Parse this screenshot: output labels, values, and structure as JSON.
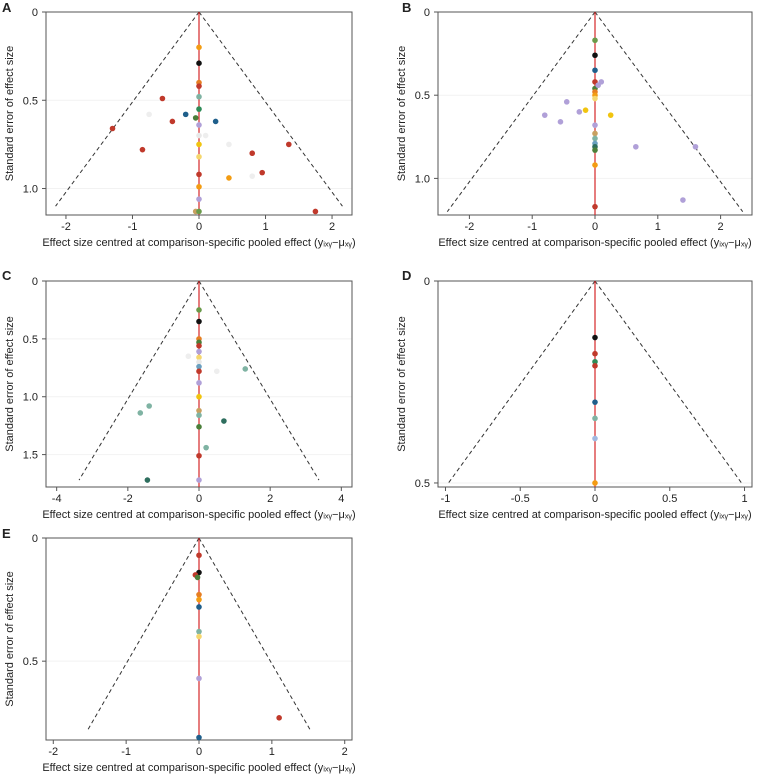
{
  "chart_data": [
    {
      "type": "scatter",
      "panel": "A",
      "xlabel": "Effect size centred at comparison-specific pooled effect (yᵢₓᵧ−μₓᵧ)",
      "ylabel": "Standard error of effect size",
      "xlim": [
        -2.3,
        2.3
      ],
      "ylim": [
        0,
        1.15
      ],
      "xticks": [
        -2,
        -1,
        0,
        1,
        2
      ],
      "xtick_labels": [
        "-2",
        "-1",
        "0",
        "1",
        "2"
      ],
      "yticks": [
        0,
        0.5,
        1.0
      ],
      "ytick_labels": [
        "0",
        "0.5",
        "1.0"
      ],
      "funnel_se_max": 1.1,
      "points": [
        {
          "x": 0.0,
          "y": 0.2,
          "c": "#f39c12"
        },
        {
          "x": 0.0,
          "y": 0.29,
          "c": "#111111"
        },
        {
          "x": 0.0,
          "y": 0.4,
          "c": "#e67e22"
        },
        {
          "x": 0.0,
          "y": 0.42,
          "c": "#c0392b"
        },
        {
          "x": 0.0,
          "y": 0.48,
          "c": "#7fb3a3"
        },
        {
          "x": 0.0,
          "y": 0.55,
          "c": "#2e8b57"
        },
        {
          "x": -0.05,
          "y": 0.6,
          "c": "#4a7f3a"
        },
        {
          "x": 0.0,
          "y": 0.64,
          "c": "#b0a0d8"
        },
        {
          "x": 0.0,
          "y": 0.7,
          "c": "#e8e8e8"
        },
        {
          "x": 0.0,
          "y": 0.75,
          "c": "#f1c40f"
        },
        {
          "x": 0.0,
          "y": 0.82,
          "c": "#f5d76e"
        },
        {
          "x": 0.0,
          "y": 0.92,
          "c": "#c0392b"
        },
        {
          "x": 0.0,
          "y": 0.99,
          "c": "#f39c12"
        },
        {
          "x": 0.0,
          "y": 1.06,
          "c": "#b0a0d8"
        },
        {
          "x": -0.05,
          "y": 1.13,
          "c": "#c8a060"
        },
        {
          "x": 0.0,
          "y": 1.13,
          "c": "#6a9a4a"
        },
        {
          "x": -0.2,
          "y": 0.58,
          "c": "#1f5f8b"
        },
        {
          "x": -0.4,
          "y": 0.62,
          "c": "#c0392b"
        },
        {
          "x": -0.55,
          "y": 0.49,
          "c": "#c0392b"
        },
        {
          "x": -0.75,
          "y": 0.58,
          "c": "#eeeeee"
        },
        {
          "x": -0.85,
          "y": 0.78,
          "c": "#c0392b"
        },
        {
          "x": -1.3,
          "y": 0.66,
          "c": "#c0392b"
        },
        {
          "x": 0.25,
          "y": 0.62,
          "c": "#1f5f8b"
        },
        {
          "x": 0.1,
          "y": 0.7,
          "c": "#eeeeee"
        },
        {
          "x": 0.45,
          "y": 0.75,
          "c": "#eeeeee"
        },
        {
          "x": 0.45,
          "y": 0.94,
          "c": "#f39c12"
        },
        {
          "x": 0.8,
          "y": 0.93,
          "c": "#eeeeee"
        },
        {
          "x": 0.8,
          "y": 0.8,
          "c": "#c0392b"
        },
        {
          "x": 0.95,
          "y": 0.91,
          "c": "#c0392b"
        },
        {
          "x": 1.35,
          "y": 0.75,
          "c": "#c0392b"
        },
        {
          "x": 1.75,
          "y": 1.13,
          "c": "#c0392b"
        }
      ]
    },
    {
      "type": "scatter",
      "panel": "B",
      "xlabel": "Effect size centred at comparison-specific pooled effect (yᵢₓᵧ−μₓᵧ)",
      "ylabel": "Standard error of effect size",
      "xlim": [
        -2.5,
        2.5
      ],
      "ylim": [
        0,
        1.22
      ],
      "xticks": [
        -2,
        -1,
        0,
        1,
        2
      ],
      "xtick_labels": [
        "-2",
        "-1",
        "0",
        "1",
        "2"
      ],
      "yticks": [
        0,
        0.5,
        1.0
      ],
      "ytick_labels": [
        "0",
        "0.5",
        "1.0"
      ],
      "funnel_se_max": 1.2,
      "points": [
        {
          "x": 0.0,
          "y": 0.17,
          "c": "#6a9a4a"
        },
        {
          "x": 0.0,
          "y": 0.26,
          "c": "#111111"
        },
        {
          "x": 0.0,
          "y": 0.35,
          "c": "#1f5f8b"
        },
        {
          "x": 0.0,
          "y": 0.42,
          "c": "#c0392b"
        },
        {
          "x": 0.0,
          "y": 0.46,
          "c": "#4a7f3a"
        },
        {
          "x": 0.0,
          "y": 0.48,
          "c": "#e67e22"
        },
        {
          "x": 0.0,
          "y": 0.5,
          "c": "#f39c12"
        },
        {
          "x": 0.0,
          "y": 0.52,
          "c": "#f5d76e"
        },
        {
          "x": 0.05,
          "y": 0.44,
          "c": "#b0a0d8"
        },
        {
          "x": 0.1,
          "y": 0.42,
          "c": "#b0a0d8"
        },
        {
          "x": 0.0,
          "y": 0.68,
          "c": "#b0a0d8"
        },
        {
          "x": 0.0,
          "y": 0.73,
          "c": "#c8a060"
        },
        {
          "x": 0.0,
          "y": 0.76,
          "c": "#7fb3a3"
        },
        {
          "x": 0.0,
          "y": 0.79,
          "c": "#6aa0c0"
        },
        {
          "x": 0.0,
          "y": 0.81,
          "c": "#2e6e5e"
        },
        {
          "x": 0.0,
          "y": 0.83,
          "c": "#4a7f3a"
        },
        {
          "x": 0.0,
          "y": 0.92,
          "c": "#f39c12"
        },
        {
          "x": 0.0,
          "y": 1.17,
          "c": "#c0392b"
        },
        {
          "x": 0.25,
          "y": 0.62,
          "c": "#f1c40f"
        },
        {
          "x": -0.15,
          "y": 0.59,
          "c": "#f1c40f"
        },
        {
          "x": -0.25,
          "y": 0.6,
          "c": "#b0a0d8"
        },
        {
          "x": -0.45,
          "y": 0.54,
          "c": "#b0a0d8"
        },
        {
          "x": -0.55,
          "y": 0.66,
          "c": "#b0a0d8"
        },
        {
          "x": -0.8,
          "y": 0.62,
          "c": "#b0a0d8"
        },
        {
          "x": 0.65,
          "y": 0.81,
          "c": "#b0a0d8"
        },
        {
          "x": 1.4,
          "y": 1.13,
          "c": "#b0a0d8"
        },
        {
          "x": 1.6,
          "y": 0.81,
          "c": "#b0a0d8"
        }
      ]
    },
    {
      "type": "scatter",
      "panel": "C",
      "xlabel": "Effect size centred at comparison-specific pooled effect (yᵢₓᵧ−μₓᵧ)",
      "ylabel": "Standard error of effect size",
      "xlim": [
        -4.3,
        4.3
      ],
      "ylim": [
        0,
        1.78
      ],
      "xticks": [
        -4,
        -2,
        0,
        2,
        4
      ],
      "xtick_labels": [
        "-4",
        "-2",
        "0",
        "2",
        "4"
      ],
      "yticks": [
        0,
        0.5,
        1.0,
        1.5
      ],
      "ytick_labels": [
        "0",
        "0.5",
        "1.0",
        "1.5"
      ],
      "funnel_se_max": 1.72,
      "points": [
        {
          "x": 0.0,
          "y": 0.25,
          "c": "#6a9a4a"
        },
        {
          "x": 0.0,
          "y": 0.35,
          "c": "#111111"
        },
        {
          "x": 0.0,
          "y": 0.5,
          "c": "#e67e22"
        },
        {
          "x": 0.0,
          "y": 0.53,
          "c": "#4a7f3a"
        },
        {
          "x": 0.0,
          "y": 0.56,
          "c": "#c0392b"
        },
        {
          "x": 0.0,
          "y": 0.61,
          "c": "#b0a0d8"
        },
        {
          "x": 0.0,
          "y": 0.66,
          "c": "#f5d76e"
        },
        {
          "x": 0.0,
          "y": 0.7,
          "c": "#e8e8e8"
        },
        {
          "x": 0.0,
          "y": 0.74,
          "c": "#6aa0c0"
        },
        {
          "x": 0.0,
          "y": 0.78,
          "c": "#c0392b"
        },
        {
          "x": 0.0,
          "y": 0.88,
          "c": "#b0a0d8"
        },
        {
          "x": 0.0,
          "y": 1.0,
          "c": "#f1c40f"
        },
        {
          "x": 0.0,
          "y": 1.12,
          "c": "#c8a060"
        },
        {
          "x": 0.0,
          "y": 1.16,
          "c": "#7fb3a3"
        },
        {
          "x": 0.0,
          "y": 1.26,
          "c": "#4a7f3a"
        },
        {
          "x": 0.0,
          "y": 1.51,
          "c": "#c0392b"
        },
        {
          "x": 0.0,
          "y": 1.72,
          "c": "#b0a0d8"
        },
        {
          "x": -0.3,
          "y": 0.65,
          "c": "#eeeeee"
        },
        {
          "x": 0.5,
          "y": 0.78,
          "c": "#eeeeee"
        },
        {
          "x": 1.3,
          "y": 0.76,
          "c": "#7fb3a3"
        },
        {
          "x": 0.7,
          "y": 1.21,
          "c": "#2e6e5e"
        },
        {
          "x": 0.2,
          "y": 1.44,
          "c": "#7fb3a3"
        },
        {
          "x": -1.4,
          "y": 1.08,
          "c": "#7fb3a3"
        },
        {
          "x": -1.65,
          "y": 1.14,
          "c": "#7fb3a3"
        },
        {
          "x": -1.45,
          "y": 1.72,
          "c": "#2e6e5e"
        }
      ]
    },
    {
      "type": "scatter",
      "panel": "D",
      "xlabel": "Effect size centred at comparison-specific pooled effect (yᵢₓᵧ−μₓᵧ)",
      "ylabel": "Standard error of effect size",
      "xlim": [
        -1.05,
        1.05
      ],
      "ylim": [
        0,
        0.51
      ],
      "xticks": [
        -1,
        -0.5,
        0,
        0.5,
        1
      ],
      "xtick_labels": [
        "-1",
        "-0.5",
        "0",
        "0.5",
        "1"
      ],
      "yticks": [
        0,
        0.5
      ],
      "ytick_labels": [
        "0",
        "0.5"
      ],
      "funnel_se_max": 0.5,
      "points": [
        {
          "x": 0.0,
          "y": 0.14,
          "c": "#111111"
        },
        {
          "x": 0.0,
          "y": 0.18,
          "c": "#c0392b"
        },
        {
          "x": 0.0,
          "y": 0.2,
          "c": "#2e8b57"
        },
        {
          "x": 0.0,
          "y": 0.21,
          "c": "#c0392b"
        },
        {
          "x": 0.0,
          "y": 0.3,
          "c": "#1f5f8b"
        },
        {
          "x": 0.0,
          "y": 0.34,
          "c": "#7fb3a3"
        },
        {
          "x": 0.0,
          "y": 0.39,
          "c": "#a0b8e0"
        },
        {
          "x": 0.0,
          "y": 0.5,
          "c": "#f39c12"
        }
      ]
    },
    {
      "type": "scatter",
      "panel": "E",
      "xlabel": "Effect size centred at comparison-specific pooled effect (yᵢₓᵧ−μₓᵧ)",
      "ylabel": "Standard error of effect size",
      "xlim": [
        -2.1,
        2.1
      ],
      "ylim": [
        0,
        0.82
      ],
      "xticks": [
        -2,
        -1,
        0,
        1,
        2
      ],
      "xtick_labels": [
        "-2",
        "-1",
        "0",
        "1",
        "2"
      ],
      "yticks": [
        0,
        0.5
      ],
      "ytick_labels": [
        "0",
        "0.5"
      ],
      "funnel_se_max": 0.78,
      "points": [
        {
          "x": 0.0,
          "y": 0.07,
          "c": "#c0392b"
        },
        {
          "x": 0.0,
          "y": 0.14,
          "c": "#111111"
        },
        {
          "x": -0.05,
          "y": 0.15,
          "c": "#c0392b"
        },
        {
          "x": -0.02,
          "y": 0.16,
          "c": "#4a7f3a"
        },
        {
          "x": 0.0,
          "y": 0.23,
          "c": "#e67e22"
        },
        {
          "x": 0.0,
          "y": 0.25,
          "c": "#f39c12"
        },
        {
          "x": 0.0,
          "y": 0.28,
          "c": "#1f5f8b"
        },
        {
          "x": 0.0,
          "y": 0.38,
          "c": "#7fb3a3"
        },
        {
          "x": 0.0,
          "y": 0.4,
          "c": "#f5d76e"
        },
        {
          "x": 0.0,
          "y": 0.57,
          "c": "#b0a0d8"
        },
        {
          "x": 1.1,
          "y": 0.73,
          "c": "#c0392b"
        },
        {
          "x": 0.0,
          "y": 0.81,
          "c": "#1f5f8b"
        }
      ]
    }
  ]
}
